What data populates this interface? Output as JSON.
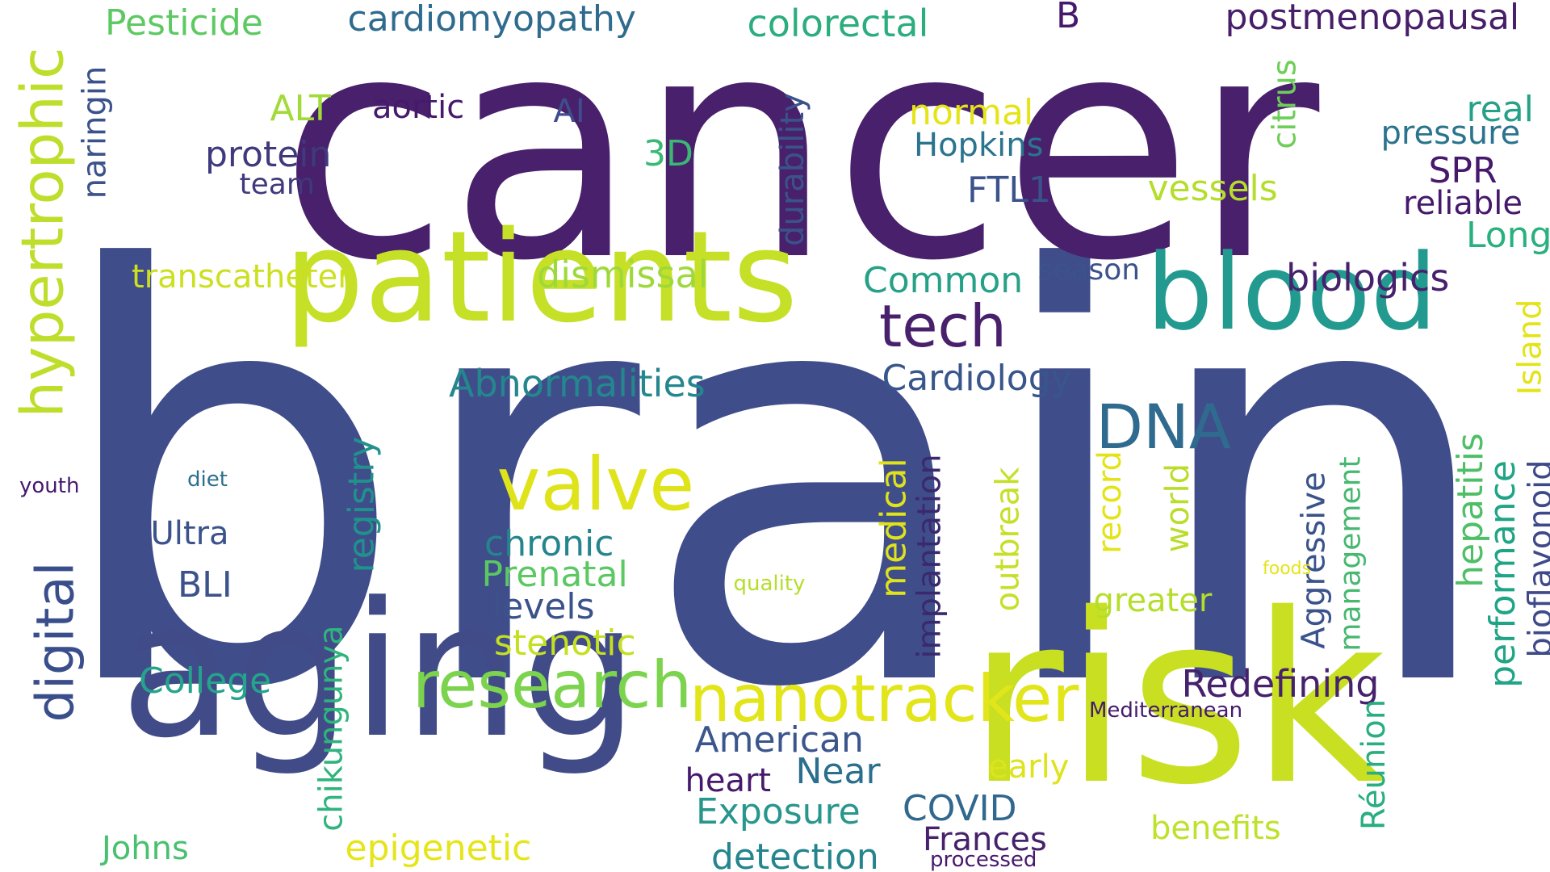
{
  "words": [
    {
      "text": "brain",
      "color": "#404d8b"
    },
    {
      "text": "cancer",
      "color": "#48206c"
    },
    {
      "text": "risk",
      "color": "#c8e021"
    },
    {
      "text": "aging",
      "color": "#414b87"
    },
    {
      "text": "patients",
      "color": "#c5e026"
    },
    {
      "text": "blood",
      "color": "#229a8f"
    },
    {
      "text": "nanotracker",
      "color": "#e2e519"
    },
    {
      "text": "research",
      "color": "#7cd34d"
    },
    {
      "text": "valve",
      "color": "#dfe31a"
    },
    {
      "text": "hypertrophic",
      "color": "#bede2c"
    },
    {
      "text": "digital",
      "color": "#3b4e8c"
    },
    {
      "text": "tech",
      "color": "#48206c"
    },
    {
      "text": "DNA",
      "color": "#2f6b8e"
    },
    {
      "text": "Abnormalities",
      "color": "#24878e"
    },
    {
      "text": "Cardiology",
      "color": "#38568b"
    },
    {
      "text": "biologics",
      "color": "#46216c"
    },
    {
      "text": "dismissal",
      "color": "#9ed93a"
    },
    {
      "text": "transcatheter",
      "color": "#cce020"
    },
    {
      "text": "cardiomyopathy",
      "color": "#2f6b8e"
    },
    {
      "text": "colorectal",
      "color": "#2cad7f"
    },
    {
      "text": "postmenopausal",
      "color": "#471e69"
    },
    {
      "text": "Pesticide",
      "color": "#5ec962"
    },
    {
      "text": "Redefining",
      "color": "#46216c"
    },
    {
      "text": "chronic",
      "color": "#25858e"
    },
    {
      "text": "Prenatal",
      "color": "#5bc863"
    },
    {
      "text": "levels",
      "color": "#3b528b"
    },
    {
      "text": "stenotic",
      "color": "#c4e021"
    },
    {
      "text": "College",
      "color": "#24a48c"
    },
    {
      "text": "American",
      "color": "#3b568c"
    },
    {
      "text": "epigenetic",
      "color": "#e5e51a"
    },
    {
      "text": "Exposure",
      "color": "#27968c"
    },
    {
      "text": "detection",
      "color": "#25858e"
    },
    {
      "text": "Johns",
      "color": "#48c16e"
    },
    {
      "text": "heart",
      "color": "#46196c"
    },
    {
      "text": "Near",
      "color": "#2b6f8e"
    },
    {
      "text": "COVID",
      "color": "#31688e"
    },
    {
      "text": "Frances",
      "color": "#46216c"
    },
    {
      "text": "processed",
      "color": "#46196c"
    },
    {
      "text": "benefits",
      "color": "#bde22c"
    },
    {
      "text": "early",
      "color": "#dfe31a"
    },
    {
      "text": "Mediterranean",
      "color": "#46196c"
    },
    {
      "text": "registry",
      "color": "#20928c"
    },
    {
      "text": "chikungunya",
      "color": "#2fb47c"
    },
    {
      "text": "medical",
      "color": "#dfe31a"
    },
    {
      "text": "implantation",
      "color": "#3a2a6d"
    },
    {
      "text": "outbreak",
      "color": "#c5e026"
    },
    {
      "text": "record",
      "color": "#e3e418"
    },
    {
      "text": "world",
      "color": "#b8de29"
    },
    {
      "text": "greater",
      "color": "#b5de2b"
    },
    {
      "text": "Aggressive",
      "color": "#3a538b"
    },
    {
      "text": "management",
      "color": "#46b870"
    },
    {
      "text": "foods",
      "color": "#e5e419"
    },
    {
      "text": "Réunion",
      "color": "#28ae80"
    },
    {
      "text": "hepatitis",
      "color": "#4fbf67"
    },
    {
      "text": "performance",
      "color": "#20a486"
    },
    {
      "text": "bioflavonoid",
      "color": "#3e4989"
    },
    {
      "text": "Island",
      "color": "#e3e418"
    },
    {
      "text": "Long",
      "color": "#2ab07f"
    },
    {
      "text": "reliable",
      "color": "#46196c"
    },
    {
      "text": "SPR",
      "color": "#46196c"
    },
    {
      "text": "pressure",
      "color": "#2b748e"
    },
    {
      "text": "real",
      "color": "#26a187"
    },
    {
      "text": "citrus",
      "color": "#6ece58"
    },
    {
      "text": "vessels",
      "color": "#b5de2b"
    },
    {
      "text": "FTL1",
      "color": "#3b528b"
    },
    {
      "text": "Hopkins",
      "color": "#2b748e"
    },
    {
      "text": "normal",
      "color": "#e5e419"
    },
    {
      "text": "Common",
      "color": "#26a187"
    },
    {
      "text": "season",
      "color": "#3b528b"
    },
    {
      "text": "3D",
      "color": "#3cb875"
    },
    {
      "text": "AI",
      "color": "#404d8b"
    },
    {
      "text": "durability",
      "color": "#3b528b"
    },
    {
      "text": "B",
      "color": "#46196c"
    },
    {
      "text": "aortic",
      "color": "#46196c"
    },
    {
      "text": "ALT",
      "color": "#a2da37"
    },
    {
      "text": "protein",
      "color": "#3e3a7d"
    },
    {
      "text": "team",
      "color": "#3e3a7d"
    },
    {
      "text": "naringin",
      "color": "#3b528b"
    },
    {
      "text": "Ultra",
      "color": "#3b528b"
    },
    {
      "text": "BLI",
      "color": "#3b528b"
    },
    {
      "text": "diet",
      "color": "#2b6f8e"
    },
    {
      "text": "youth",
      "color": "#46196c"
    },
    {
      "text": "quality",
      "color": "#b5de2b"
    }
  ]
}
